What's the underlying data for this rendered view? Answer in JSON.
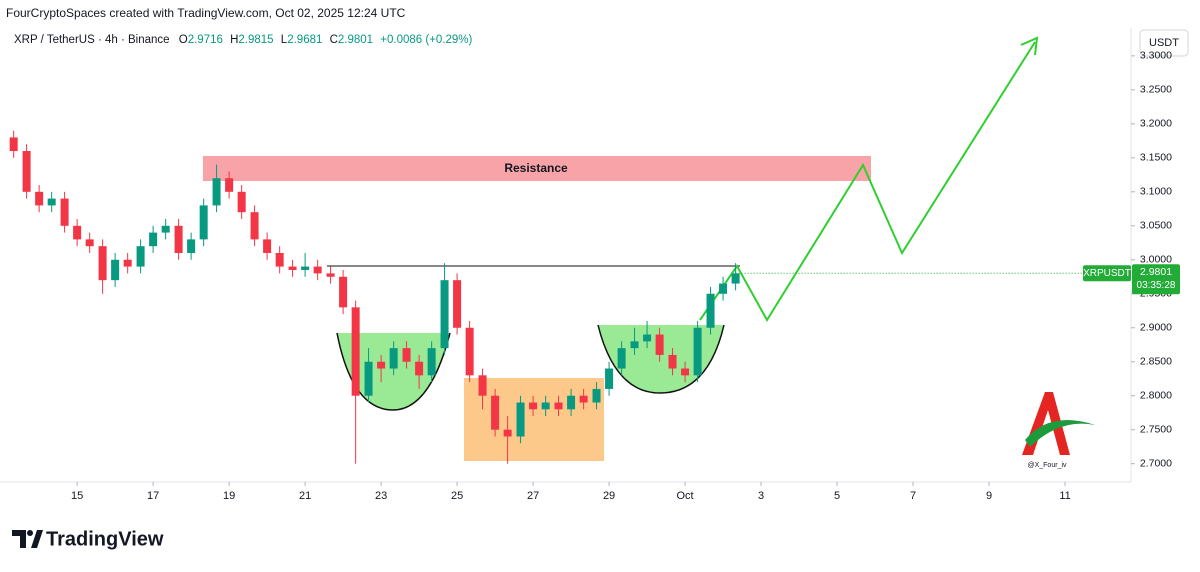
{
  "header": "FourCryptoSpaces created with TradingView.com, Oct 02, 2025 12:24 UTC",
  "legend": {
    "symbol": "XRP / TetherUS · 4h · Binance",
    "fields": [
      {
        "label": "O",
        "value": 2.9716
      },
      {
        "label": "H",
        "value": 2.9815
      },
      {
        "label": "L",
        "value": 2.9681
      },
      {
        "label": "C",
        "value": 2.9801
      }
    ],
    "change": "+0.0086 (+0.29%)"
  },
  "currency": "USDT",
  "annotation": "Resistance",
  "watermark": "@X_Four_iv",
  "brand": "TradingView",
  "chart_data": {
    "type": "candlestick",
    "x": [
      13.33,
      13.67,
      14.0,
      14.33,
      14.67,
      15.0,
      15.33,
      15.67,
      16.0,
      16.33,
      16.67,
      17.0,
      17.33,
      17.67,
      18.0,
      18.33,
      18.67,
      19.0,
      19.33,
      19.67,
      20.0,
      20.33,
      20.67,
      21.0,
      21.33,
      21.67,
      22.0,
      22.33,
      22.67,
      23.0,
      23.33,
      23.67,
      24.0,
      24.33,
      24.67,
      25.0,
      25.33,
      25.67,
      26.0,
      26.33,
      26.67,
      27.0,
      27.33,
      27.67,
      28.0,
      28.33,
      28.67,
      29.0,
      29.33,
      29.67,
      30.0,
      30.33,
      30.67,
      31.0,
      31.33,
      31.67,
      32.0,
      32.33
    ],
    "open": [
      3.18,
      3.16,
      3.1,
      3.08,
      3.09,
      3.05,
      3.03,
      3.02,
      2.97,
      3.0,
      2.99,
      3.02,
      3.04,
      3.05,
      3.01,
      3.03,
      3.08,
      3.12,
      3.1,
      3.07,
      3.03,
      3.01,
      2.99,
      2.985,
      2.99,
      2.98,
      2.975,
      2.93,
      2.8,
      2.85,
      2.84,
      2.87,
      2.85,
      2.83,
      2.87,
      2.97,
      2.9,
      2.83,
      2.8,
      2.75,
      2.74,
      2.79,
      2.78,
      2.79,
      2.78,
      2.8,
      2.79,
      2.81,
      2.84,
      2.87,
      2.88,
      2.89,
      2.86,
      2.84,
      2.83,
      2.9,
      2.95,
      2.965
    ],
    "high": [
      3.19,
      3.17,
      3.11,
      3.1,
      3.1,
      3.06,
      3.04,
      3.03,
      3.01,
      3.01,
      3.03,
      3.05,
      3.06,
      3.06,
      3.04,
      3.09,
      3.14,
      3.13,
      3.11,
      3.08,
      3.04,
      3.02,
      3.0,
      3.01,
      3.0,
      2.99,
      2.985,
      2.94,
      2.87,
      2.86,
      2.88,
      2.88,
      2.86,
      2.88,
      2.995,
      2.98,
      2.91,
      2.84,
      2.81,
      2.77,
      2.8,
      2.8,
      2.8,
      2.8,
      2.81,
      2.81,
      2.82,
      2.85,
      2.88,
      2.9,
      2.91,
      2.9,
      2.87,
      2.85,
      2.91,
      2.96,
      2.975,
      2.995
    ],
    "low": [
      3.15,
      3.09,
      3.07,
      3.07,
      3.04,
      3.02,
      3.01,
      2.95,
      2.96,
      2.98,
      2.98,
      3.01,
      3.03,
      3.0,
      3.0,
      3.02,
      3.07,
      3.09,
      3.06,
      3.02,
      3.0,
      2.98,
      2.975,
      2.975,
      2.97,
      2.965,
      2.92,
      2.7,
      2.79,
      2.82,
      2.83,
      2.84,
      2.81,
      2.82,
      2.86,
      2.89,
      2.82,
      2.78,
      2.74,
      2.7,
      2.73,
      2.77,
      2.77,
      2.77,
      2.77,
      2.78,
      2.78,
      2.8,
      2.83,
      2.86,
      2.87,
      2.85,
      2.83,
      2.82,
      2.82,
      2.89,
      2.94,
      2.955
    ],
    "close": [
      3.16,
      3.1,
      3.08,
      3.09,
      3.05,
      3.03,
      3.02,
      2.97,
      3.0,
      2.99,
      3.02,
      3.04,
      3.05,
      3.01,
      3.03,
      3.08,
      3.12,
      3.1,
      3.07,
      3.03,
      3.01,
      2.99,
      2.985,
      2.99,
      2.98,
      2.975,
      2.93,
      2.8,
      2.85,
      2.84,
      2.87,
      2.85,
      2.83,
      2.87,
      2.97,
      2.9,
      2.83,
      2.8,
      2.75,
      2.74,
      2.79,
      2.78,
      2.79,
      2.78,
      2.8,
      2.79,
      2.81,
      2.84,
      2.87,
      2.88,
      2.89,
      2.86,
      2.84,
      2.83,
      2.9,
      2.95,
      2.965,
      2.98
    ],
    "up_color": "#089981",
    "down_color": "#f23645",
    "grid": false,
    "xlim": [
      12.97,
      42.71
    ],
    "xticks": [
      15,
      17,
      19,
      21,
      23,
      25,
      27,
      29,
      {
        "value": 31,
        "label": "Oct"
      },
      {
        "value": 33,
        "label": "3"
      },
      {
        "value": 35,
        "label": "5"
      },
      {
        "value": 37,
        "label": "7"
      },
      {
        "value": 39,
        "label": "9"
      },
      {
        "value": 41,
        "label": "11"
      }
    ],
    "ylim": [
      2.676,
      3.341
    ],
    "yticks": [
      {
        "value": 2.7,
        "label": "2.7000"
      },
      {
        "value": 2.75,
        "label": "2.7500"
      },
      {
        "value": 2.8,
        "label": "2.8000"
      },
      {
        "value": 2.85,
        "label": "2.8500"
      },
      {
        "value": 2.9,
        "label": "2.9000"
      },
      {
        "value": 2.95,
        "label": "2.9500"
      },
      {
        "value": 3.0,
        "label": "3.0000"
      },
      {
        "value": 3.05,
        "label": "3.0500"
      },
      {
        "value": 3.1,
        "label": "3.1000"
      },
      {
        "value": 3.15,
        "label": "3.1500"
      },
      {
        "value": 3.2,
        "label": "3.2000"
      },
      {
        "value": 3.25,
        "label": "3.2500"
      },
      {
        "value": 3.3,
        "label": "3.3000"
      }
    ],
    "last_price": {
      "name": "XRPUSDT",
      "value": 2.9801,
      "countdown": "03:35:28",
      "color": "#22ab37"
    }
  }
}
